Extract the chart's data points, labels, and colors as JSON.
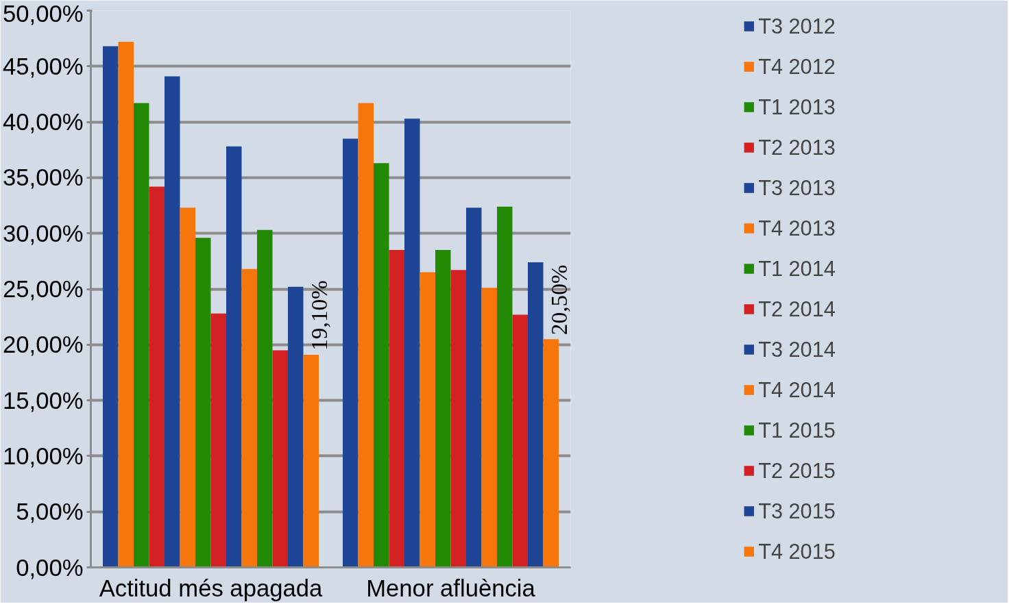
{
  "chart_data": {
    "type": "bar",
    "categories": [
      "Actitud més apagada",
      "Menor afluència"
    ],
    "series": [
      {
        "name": "T3 2012",
        "color": "#1f4597",
        "values": [
          46.8,
          38.5
        ]
      },
      {
        "name": "T4 2012",
        "color": "#f7760c",
        "values": [
          47.2,
          41.7
        ]
      },
      {
        "name": "T1 2013",
        "color": "#238a06",
        "values": [
          41.7,
          36.3
        ]
      },
      {
        "name": "T2 2013",
        "color": "#d42224",
        "values": [
          34.2,
          28.5
        ]
      },
      {
        "name": "T3 2013",
        "color": "#1f4597",
        "values": [
          44.1,
          40.3
        ]
      },
      {
        "name": "T4 2013",
        "color": "#f7760c",
        "values": [
          32.3,
          26.5
        ]
      },
      {
        "name": "T1 2014",
        "color": "#238a06",
        "values": [
          29.6,
          28.5
        ]
      },
      {
        "name": "T2 2014",
        "color": "#d42224",
        "values": [
          22.8,
          26.7
        ]
      },
      {
        "name": "T3 2014",
        "color": "#1f4597",
        "values": [
          37.8,
          32.3
        ]
      },
      {
        "name": "T4 2014",
        "color": "#f7760c",
        "values": [
          26.8,
          25.1
        ]
      },
      {
        "name": "T1 2015",
        "color": "#238a06",
        "values": [
          30.3,
          32.4
        ]
      },
      {
        "name": "T2 2015",
        "color": "#d42224",
        "values": [
          19.5,
          22.7
        ]
      },
      {
        "name": "T3 2015",
        "color": "#1f4597",
        "values": [
          25.2,
          27.4
        ]
      },
      {
        "name": "T4 2015",
        "color": "#f7760c",
        "values": [
          19.1,
          20.5
        ],
        "value_labels": [
          "19,10%",
          "20,50%"
        ]
      }
    ],
    "ylim": [
      0,
      50
    ],
    "yticks": [
      {
        "value": 0,
        "label": "0,00%"
      },
      {
        "value": 5,
        "label": "5,00%"
      },
      {
        "value": 10,
        "label": "10,00%"
      },
      {
        "value": 15,
        "label": "15,00%"
      },
      {
        "value": 20,
        "label": "20,00%"
      },
      {
        "value": 25,
        "label": "25,00%"
      },
      {
        "value": 30,
        "label": "30,00%"
      },
      {
        "value": 35,
        "label": "35,00%"
      },
      {
        "value": 40,
        "label": "40,00%"
      },
      {
        "value": 45,
        "label": "45,00%"
      },
      {
        "value": 50,
        "label": "50,00%"
      }
    ],
    "grid": "y",
    "legend": "right"
  }
}
